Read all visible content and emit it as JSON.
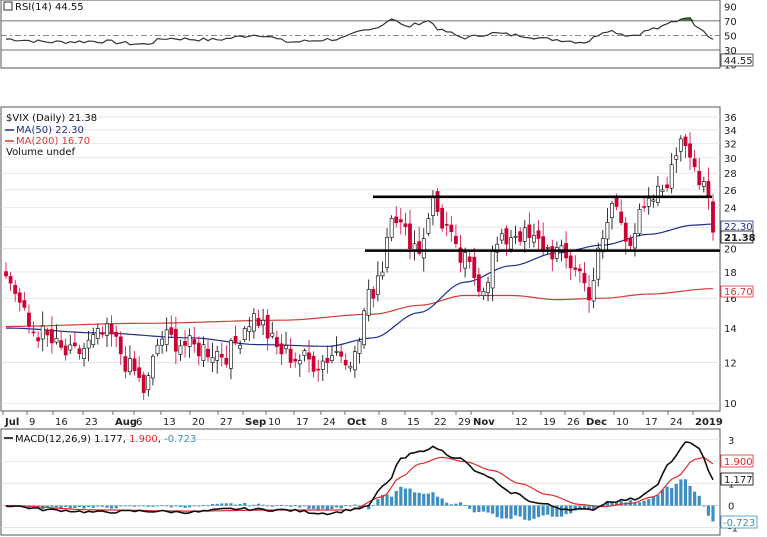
{
  "colors": {
    "up_candle": "#ffffff",
    "down_candle": "#cc0033",
    "candle_edge": "#000000",
    "ma50": "#1f2f8f",
    "ma200": "#d43a3a",
    "rsi_line": "#333333",
    "rsi_fill": "#4a7a3a",
    "macd_line": "#111111",
    "signal_line": "#e02a2a",
    "histogram": "#3d8fc0",
    "grid": "#dddddd",
    "support_lines": "#000000"
  },
  "rsi": {
    "legend": "RSI(14) 44.55",
    "value_badge": "44.55",
    "ticks": [
      "90",
      "70",
      "50",
      "30",
      "10"
    ],
    "levels": [
      30,
      50,
      70
    ],
    "ylim": [
      8,
      96
    ]
  },
  "price": {
    "legend_symbol": "$VIX (Daily) 21.38",
    "legend_ma50": "MA(50) 22.30",
    "legend_ma200": "MA(200) 16.70",
    "legend_volume": "Volume undef",
    "ticks": [
      "36",
      "34",
      "32",
      "30",
      "28",
      "26",
      "24",
      "22",
      "20",
      "18",
      "16",
      "14",
      "12",
      "10"
    ],
    "badges": {
      "ma50": "22.30",
      "close": "21.38",
      "ma200": "16.70"
    },
    "scale": "log",
    "ylim": [
      9.7,
      37.5
    ],
    "horizontal_lines": [
      25.2,
      19.8
    ]
  },
  "macd": {
    "legend_prefix": "MACD(12,26,9) 1.177, ",
    "legend_signal": "1.900",
    "legend_sep": ", ",
    "legend_hist": "-0.723",
    "ticks": [
      "3",
      "2",
      "1",
      "0",
      "-1"
    ],
    "badges": {
      "signal": "1.900",
      "macd": "1.177",
      "hist": "-0.723"
    },
    "ylim": [
      -1.25,
      3.4
    ]
  },
  "dates": [
    {
      "label": "Jul",
      "bold": true
    },
    {
      "label": "9",
      "bold": false
    },
    {
      "label": "16",
      "bold": false
    },
    {
      "label": "23",
      "bold": false
    },
    {
      "label": "Aug",
      "bold": true
    },
    {
      "label": "6",
      "bold": false
    },
    {
      "label": "13",
      "bold": false
    },
    {
      "label": "20",
      "bold": false
    },
    {
      "label": "27",
      "bold": false
    },
    {
      "label": "Sep",
      "bold": true
    },
    {
      "label": "10",
      "bold": false
    },
    {
      "label": "17",
      "bold": false
    },
    {
      "label": "24",
      "bold": false
    },
    {
      "label": "Oct",
      "bold": true
    },
    {
      "label": "8",
      "bold": false
    },
    {
      "label": "15",
      "bold": false
    },
    {
      "label": "22",
      "bold": false
    },
    {
      "label": "29",
      "bold": false
    },
    {
      "label": "Nov",
      "bold": true
    },
    {
      "label": "12",
      "bold": false
    },
    {
      "label": "19",
      "bold": false
    },
    {
      "label": "26",
      "bold": false
    },
    {
      "label": "Dec",
      "bold": true
    },
    {
      "label": "10",
      "bold": false
    },
    {
      "label": "17",
      "bold": false
    },
    {
      "label": "24",
      "bold": false
    },
    {
      "label": "2019",
      "bold": true
    }
  ],
  "chart_data": {
    "type": "line",
    "symbol": "$VIX",
    "period": "Daily",
    "ohlc_anchors": [
      [
        0,
        17.5
      ],
      [
        6,
        13.8
      ],
      [
        14,
        12.4
      ],
      [
        22,
        13.6
      ],
      [
        28,
        11.5
      ],
      [
        30,
        10.6
      ],
      [
        34,
        13.4
      ],
      [
        42,
        12.8
      ],
      [
        48,
        12.5
      ],
      [
        54,
        14.7
      ],
      [
        60,
        12.6
      ],
      [
        64,
        12.2
      ],
      [
        68,
        12.0
      ],
      [
        72,
        12.6
      ],
      [
        76,
        12.3
      ],
      [
        79,
        16.0
      ],
      [
        82,
        18.5
      ],
      [
        84,
        24.0
      ],
      [
        87,
        21.3
      ],
      [
        90,
        20.0
      ],
      [
        93,
        24.7
      ],
      [
        95,
        22.5
      ],
      [
        99,
        19.0
      ],
      [
        104,
        17.0
      ],
      [
        107,
        20.2
      ],
      [
        111,
        21.5
      ],
      [
        115,
        20.6
      ],
      [
        119,
        19.8
      ],
      [
        124,
        18.5
      ],
      [
        127,
        16.5
      ],
      [
        130,
        20.4
      ],
      [
        132,
        24.4
      ],
      [
        136,
        21.0
      ],
      [
        139,
        23.5
      ],
      [
        142,
        25.5
      ],
      [
        145,
        28.0
      ],
      [
        147,
        33.5
      ],
      [
        149,
        31.5
      ],
      [
        151,
        27.0
      ],
      [
        153,
        24.5
      ],
      [
        154,
        21.5
      ]
    ],
    "ma50_anchors": [
      [
        0,
        14.0
      ],
      [
        20,
        13.7
      ],
      [
        40,
        13.4
      ],
      [
        55,
        13.0
      ],
      [
        70,
        12.9
      ],
      [
        80,
        13.4
      ],
      [
        90,
        15.0
      ],
      [
        100,
        17.2
      ],
      [
        110,
        18.5
      ],
      [
        120,
        19.6
      ],
      [
        130,
        20.3
      ],
      [
        140,
        21.3
      ],
      [
        150,
        22.2
      ],
      [
        154,
        22.3
      ]
    ],
    "ma200_anchors": [
      [
        0,
        14.1
      ],
      [
        30,
        14.3
      ],
      [
        60,
        14.5
      ],
      [
        80,
        14.9
      ],
      [
        90,
        15.5
      ],
      [
        100,
        16.2
      ],
      [
        110,
        16.2
      ],
      [
        120,
        15.9
      ],
      [
        130,
        16.0
      ],
      [
        140,
        16.3
      ],
      [
        154,
        16.7
      ]
    ],
    "rsi_anchors": [
      [
        0,
        45
      ],
      [
        10,
        41
      ],
      [
        20,
        42
      ],
      [
        30,
        38
      ],
      [
        35,
        46
      ],
      [
        45,
        44
      ],
      [
        55,
        51
      ],
      [
        62,
        41
      ],
      [
        72,
        45
      ],
      [
        79,
        57
      ],
      [
        82,
        65
      ],
      [
        84,
        74
      ],
      [
        87,
        62
      ],
      [
        92,
        70
      ],
      [
        95,
        56
      ],
      [
        100,
        47
      ],
      [
        106,
        53
      ],
      [
        112,
        50
      ],
      [
        118,
        45
      ],
      [
        126,
        41
      ],
      [
        131,
        57
      ],
      [
        136,
        50
      ],
      [
        142,
        60
      ],
      [
        146,
        70
      ],
      [
        148,
        76
      ],
      [
        151,
        62
      ],
      [
        154,
        44.55
      ]
    ],
    "macd_anchors": [
      [
        0,
        0.0
      ],
      [
        10,
        -0.2
      ],
      [
        20,
        -0.3
      ],
      [
        30,
        -0.25
      ],
      [
        40,
        -0.3
      ],
      [
        50,
        -0.15
      ],
      [
        60,
        -0.2
      ],
      [
        70,
        -0.35
      ],
      [
        78,
        -0.1
      ],
      [
        83,
        1.0
      ],
      [
        86,
        2.1
      ],
      [
        89,
        2.4
      ],
      [
        93,
        2.65
      ],
      [
        98,
        2.2
      ],
      [
        104,
        1.4
      ],
      [
        110,
        0.6
      ],
      [
        116,
        0.1
      ],
      [
        122,
        -0.15
      ],
      [
        127,
        -0.2
      ],
      [
        132,
        0.2
      ],
      [
        137,
        0.3
      ],
      [
        141,
        0.8
      ],
      [
        145,
        2.0
      ],
      [
        148,
        2.9
      ],
      [
        151,
        2.6
      ],
      [
        154,
        1.177
      ]
    ],
    "signal_anchors": [
      [
        0,
        0.0
      ],
      [
        20,
        -0.2
      ],
      [
        40,
        -0.25
      ],
      [
        60,
        -0.2
      ],
      [
        75,
        -0.2
      ],
      [
        82,
        0.4
      ],
      [
        86,
        1.3
      ],
      [
        90,
        1.9
      ],
      [
        95,
        2.2
      ],
      [
        100,
        2.0
      ],
      [
        106,
        1.6
      ],
      [
        112,
        1.0
      ],
      [
        118,
        0.5
      ],
      [
        125,
        0.05
      ],
      [
        130,
        -0.05
      ],
      [
        136,
        0.1
      ],
      [
        141,
        0.4
      ],
      [
        146,
        1.3
      ],
      [
        150,
        2.1
      ],
      [
        152,
        2.2
      ],
      [
        154,
        1.9
      ]
    ]
  }
}
